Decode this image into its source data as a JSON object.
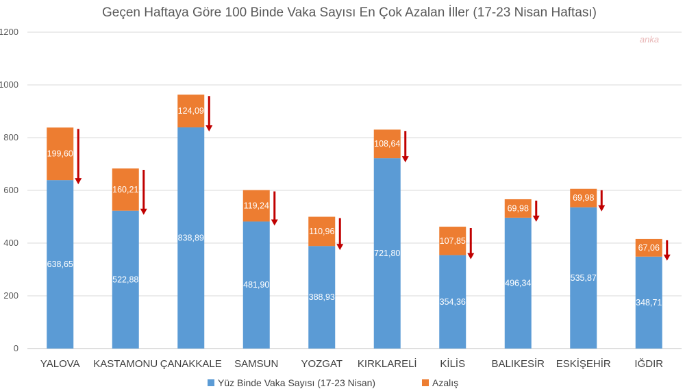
{
  "chart_data": {
    "type": "bar",
    "stacked": true,
    "title": "Geçen Haftaya Göre 100 Binde Vaka Sayısı En Çok Azalan İller (17-23 Nisan Haftası)",
    "categories": [
      "YALOVA",
      "KASTAMONU",
      "ÇANAKKALE",
      "SAMSUN",
      "YOZGAT",
      "KIRKLARELİ",
      "KİLİS",
      "BALIKESİR",
      "ESKİŞEHİR",
      "IĞDIR"
    ],
    "series": [
      {
        "name": "Yüz Binde Vaka Sayısı (17-23 Nisan)",
        "color": "#5b9bd5",
        "values": [
          638.65,
          522.88,
          838.89,
          481.9,
          388.93,
          721.8,
          354.36,
          496.34,
          535.87,
          348.71
        ],
        "labels": [
          "638,65",
          "522,88",
          "838,89",
          "481,90",
          "388,93",
          "721,80",
          "354,36",
          "496,34",
          "535,87",
          "348,71"
        ]
      },
      {
        "name": "Azalış",
        "color": "#ed7d31",
        "values": [
          199.6,
          160.21,
          124.09,
          119.24,
          110.96,
          108.64,
          107.85,
          69.98,
          69.98,
          67.06
        ],
        "labels": [
          "199,60",
          "160,21",
          "124,09",
          "119,24",
          "110,96",
          "108,64",
          "107,85",
          "69,98",
          "69,98",
          "67,06"
        ]
      }
    ],
    "ylim": [
      0,
      1200
    ],
    "yticks": [
      "0",
      "200",
      "400",
      "600",
      "800",
      "1000",
      "1200"
    ],
    "xlabel": "",
    "ylabel": "",
    "grid": true,
    "legend": "bottom",
    "arrow_color": "#c00000",
    "watermark": "anka"
  }
}
